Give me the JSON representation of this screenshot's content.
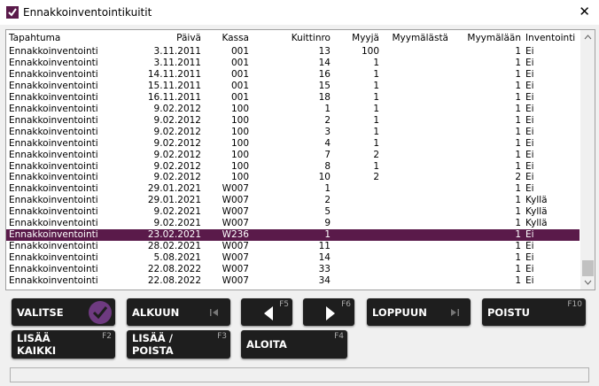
{
  "window": {
    "title": "Ennakkoinventointikuitit",
    "close": "✕"
  },
  "table": {
    "columns": [
      "Tapahtuma",
      "Päivä",
      "Kassa",
      "Kuittinro",
      "Myyjä",
      "Myymälästä",
      "Myymälään",
      "Inventointi"
    ],
    "rows": [
      [
        "Ennakkoinventointi",
        "3.11.2011",
        "001",
        13,
        100,
        null,
        1,
        "Ei"
      ],
      [
        "Ennakkoinventointi",
        "3.11.2011",
        "001",
        14,
        1,
        null,
        1,
        "Ei"
      ],
      [
        "Ennakkoinventointi",
        "14.11.2011",
        "001",
        16,
        1,
        null,
        1,
        "Ei"
      ],
      [
        "Ennakkoinventointi",
        "15.11.2011",
        "001",
        15,
        1,
        null,
        1,
        "Ei"
      ],
      [
        "Ennakkoinventointi",
        "16.11.2011",
        "001",
        18,
        1,
        null,
        1,
        "Ei"
      ],
      [
        "Ennakkoinventointi",
        "9.02.2012",
        "100",
        1,
        1,
        null,
        1,
        "Ei"
      ],
      [
        "Ennakkoinventointi",
        "9.02.2012",
        "100",
        2,
        1,
        null,
        1,
        "Ei"
      ],
      [
        "Ennakkoinventointi",
        "9.02.2012",
        "100",
        3,
        1,
        null,
        1,
        "Ei"
      ],
      [
        "Ennakkoinventointi",
        "9.02.2012",
        "100",
        4,
        1,
        null,
        1,
        "Ei"
      ],
      [
        "Ennakkoinventointi",
        "9.02.2012",
        "100",
        7,
        2,
        null,
        1,
        "Ei"
      ],
      [
        "Ennakkoinventointi",
        "9.02.2012",
        "100",
        8,
        1,
        null,
        1,
        "Ei"
      ],
      [
        "Ennakkoinventointi",
        "9.02.2012",
        "100",
        10,
        2,
        null,
        2,
        "Ei"
      ],
      [
        "Ennakkoinventointi",
        "29.01.2021",
        "W007",
        1,
        null,
        null,
        1,
        "Ei"
      ],
      [
        "Ennakkoinventointi",
        "29.01.2021",
        "W007",
        2,
        null,
        null,
        1,
        "Kyllä"
      ],
      [
        "Ennakkoinventointi",
        "9.02.2021",
        "W007",
        5,
        null,
        null,
        1,
        "Kyllä"
      ],
      [
        "Ennakkoinventointi",
        "9.02.2021",
        "W007",
        9,
        null,
        null,
        1,
        "Kyllä"
      ],
      [
        "Ennakkoinventointi",
        "23.02.2021",
        "W236",
        1,
        null,
        null,
        1,
        "Ei"
      ],
      [
        "Ennakkoinventointi",
        "28.02.2021",
        "W007",
        11,
        null,
        null,
        1,
        "Ei"
      ],
      [
        "Ennakkoinventointi",
        "5.08.2021",
        "W007",
        14,
        null,
        null,
        1,
        "Ei"
      ],
      [
        "Ennakkoinventointi",
        "22.08.2022",
        "W007",
        33,
        null,
        null,
        1,
        "Ei"
      ],
      [
        "Ennakkoinventointi",
        "22.08.2022",
        "W007",
        34,
        null,
        null,
        1,
        "Ei"
      ]
    ],
    "selected_row": 16
  },
  "buttons": {
    "select": {
      "label": "VALITSE"
    },
    "first": {
      "label": "ALKUUN"
    },
    "prev": {
      "key": "F5"
    },
    "next": {
      "key": "F6"
    },
    "last": {
      "label": "LOPPUUN"
    },
    "exit": {
      "label": "POISTU",
      "key": "F10"
    },
    "add_all": {
      "label": "LISÄÄ\nKAIKKI",
      "key": "F2"
    },
    "toggle": {
      "label": "LISÄÄ /\nPOISTA",
      "key": "F3"
    },
    "start": {
      "label": "ALOITA",
      "key": "F4"
    }
  }
}
